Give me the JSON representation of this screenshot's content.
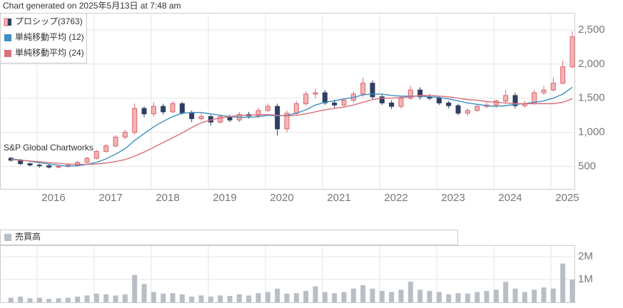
{
  "generated_note": "Chart generated on 2025年5月13日 at 7:48 am",
  "watermark": "S&P Global Chartworks",
  "chart_data": [
    {
      "type": "candlestick",
      "categories": [
        null,
        null,
        null,
        "2016",
        null,
        null,
        null,
        null,
        null,
        "2017",
        null,
        null,
        null,
        null,
        null,
        "2018",
        null,
        null,
        null,
        null,
        null,
        "2019",
        null,
        null,
        null,
        null,
        null,
        "2020",
        null,
        null,
        null,
        null,
        null,
        "2021",
        null,
        null,
        null,
        null,
        null,
        "2022",
        null,
        null,
        null,
        null,
        null,
        "2023",
        null,
        null,
        null,
        null,
        null,
        "2024",
        null,
        null,
        null,
        null,
        null,
        "2025",
        null,
        null
      ],
      "series": [
        {
          "name": "プロシップ(3763)",
          "up_color": "#d9666e",
          "up_fill": "#f6b3b3",
          "down_color": "#2e3f62",
          "open": [
            620,
            590,
            540,
            520,
            510,
            490,
            500,
            520,
            560,
            620,
            720,
            800,
            930,
            1000,
            1350,
            1270,
            1380,
            1300,
            1420,
            1280,
            1200,
            1230,
            1150,
            1230,
            1180,
            1260,
            1240,
            1320,
            1380,
            1050,
            1280,
            1420,
            1560,
            1580,
            1430,
            1400,
            1470,
            1560,
            1720,
            1520,
            1430,
            1380,
            1500,
            1620,
            1520,
            1500,
            1430,
            1390,
            1280,
            1320,
            1380,
            1400,
            1460,
            1540,
            1390,
            1420,
            1580,
            1620,
            1720,
            1960
          ],
          "high": [
            640,
            610,
            560,
            540,
            530,
            520,
            540,
            580,
            640,
            740,
            830,
            960,
            1040,
            1420,
            1380,
            1440,
            1420,
            1460,
            1450,
            1320,
            1280,
            1260,
            1260,
            1260,
            1300,
            1300,
            1360,
            1420,
            1420,
            1320,
            1460,
            1600,
            1640,
            1620,
            1480,
            1500,
            1600,
            1800,
            1760,
            1560,
            1470,
            1540,
            1680,
            1660,
            1560,
            1530,
            1460,
            1420,
            1350,
            1410,
            1440,
            1480,
            1620,
            1580,
            1460,
            1620,
            1680,
            1800,
            2050,
            2480
          ],
          "low": [
            570,
            520,
            500,
            480,
            470,
            470,
            480,
            500,
            540,
            600,
            700,
            780,
            900,
            970,
            1220,
            1230,
            1260,
            1280,
            1260,
            1150,
            1170,
            1100,
            1130,
            1150,
            1150,
            1200,
            1210,
            1300,
            950,
            1000,
            1250,
            1390,
            1500,
            1400,
            1360,
            1370,
            1440,
            1520,
            1480,
            1400,
            1340,
            1350,
            1470,
            1480,
            1470,
            1400,
            1350,
            1250,
            1240,
            1300,
            1350,
            1360,
            1420,
            1350,
            1360,
            1400,
            1550,
            1600,
            1700,
            1940
          ],
          "close": [
            590,
            540,
            520,
            510,
            490,
            500,
            520,
            560,
            620,
            720,
            800,
            930,
            1000,
            1350,
            1270,
            1380,
            1300,
            1420,
            1280,
            1200,
            1230,
            1150,
            1230,
            1180,
            1260,
            1240,
            1320,
            1380,
            1050,
            1280,
            1420,
            1560,
            1580,
            1430,
            1400,
            1470,
            1560,
            1720,
            1520,
            1430,
            1380,
            1500,
            1620,
            1520,
            1500,
            1430,
            1390,
            1280,
            1320,
            1380,
            1400,
            1460,
            1540,
            1390,
            1420,
            1580,
            1620,
            1720,
            1960,
            2400
          ]
        },
        {
          "name": "単純移動平均 (12)",
          "color": "#3d8fc4",
          "values": [
            610,
            595,
            575,
            555,
            535,
            515,
            505,
            510,
            530,
            560,
            610,
            680,
            760,
            880,
            980,
            1080,
            1160,
            1230,
            1280,
            1290,
            1290,
            1270,
            1250,
            1230,
            1220,
            1220,
            1230,
            1250,
            1240,
            1250,
            1280,
            1330,
            1400,
            1440,
            1460,
            1490,
            1510,
            1550,
            1560,
            1560,
            1540,
            1530,
            1530,
            1530,
            1520,
            1510,
            1490,
            1460,
            1430,
            1410,
            1390,
            1380,
            1390,
            1410,
            1420,
            1440,
            1460,
            1500,
            1560,
            1660
          ]
        },
        {
          "name": "単純移動平均 (24)",
          "color": "#d9707a",
          "values": [
            600,
            590,
            580,
            570,
            555,
            545,
            535,
            530,
            530,
            535,
            550,
            570,
            600,
            650,
            710,
            780,
            850,
            920,
            990,
            1070,
            1140,
            1180,
            1210,
            1230,
            1250,
            1250,
            1260,
            1260,
            1250,
            1240,
            1250,
            1270,
            1300,
            1330,
            1350,
            1370,
            1400,
            1440,
            1480,
            1500,
            1500,
            1510,
            1520,
            1540,
            1540,
            1530,
            1520,
            1500,
            1480,
            1470,
            1450,
            1440,
            1430,
            1420,
            1420,
            1420,
            1420,
            1420,
            1440,
            1490
          ]
        }
      ],
      "ylim": [
        170,
        2730
      ],
      "yticks": [
        500,
        {
          "value": 1000,
          "label": "1,000"
        },
        {
          "value": 1500,
          "label": "1,500"
        },
        {
          "value": 2000,
          "label": "2,000"
        },
        {
          "value": 2500,
          "label": "2,500"
        }
      ],
      "grid": true
    },
    {
      "type": "bar",
      "series": [
        {
          "name": "売買高",
          "color": "#b8bec6",
          "values": [
            200000,
            250000,
            180000,
            200000,
            150000,
            180000,
            200000,
            250000,
            300000,
            380000,
            350000,
            300000,
            350000,
            1200000,
            800000,
            450000,
            380000,
            400000,
            350000,
            250000,
            300000,
            250000,
            300000,
            280000,
            350000,
            300000,
            400000,
            450000,
            600000,
            380000,
            400000,
            500000,
            700000,
            450000,
            400000,
            450000,
            600000,
            750000,
            600000,
            500000,
            450000,
            550000,
            900000,
            550000,
            500000,
            450000,
            350000,
            400000,
            380000,
            450000,
            500000,
            550000,
            900000,
            600000,
            450000,
            550000,
            650000,
            600000,
            1700000,
            1000000
          ]
        }
      ],
      "ylim": [
        0,
        2470000
      ],
      "yticks": [
        {
          "value": 1000000,
          "label": "1M"
        },
        {
          "value": 2000000,
          "label": "2M"
        }
      ],
      "grid": true
    }
  ]
}
